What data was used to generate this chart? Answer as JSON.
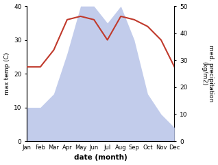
{
  "months": [
    "Jan",
    "Feb",
    "Mar",
    "Apr",
    "May",
    "Jun",
    "Jul",
    "Aug",
    "Sep",
    "Oct",
    "Nov",
    "Dec"
  ],
  "month_positions": [
    1,
    2,
    3,
    4,
    5,
    6,
    7,
    8,
    9,
    10,
    11,
    12
  ],
  "rainfall": [
    10,
    10,
    14,
    26,
    40,
    40,
    35,
    40,
    30,
    14,
    8,
    4
  ],
  "temperature": [
    22,
    22,
    27,
    36,
    37,
    36,
    30,
    37,
    36,
    34,
    30,
    22
  ],
  "temp_color": "#c0392b",
  "rain_color": "#b8c4e8",
  "ylim_left": [
    0,
    40
  ],
  "ylim_right": [
    0,
    50
  ],
  "yticks_left": [
    0,
    10,
    20,
    30,
    40
  ],
  "yticks_right": [
    0,
    10,
    20,
    30,
    40,
    50
  ],
  "xlabel": "date (month)",
  "ylabel_left": "max temp (C)",
  "ylabel_right": "med. precipitation\n(kg/m2)",
  "background_color": "#ffffff",
  "figure_size": [
    3.18,
    2.42
  ],
  "dpi": 100
}
